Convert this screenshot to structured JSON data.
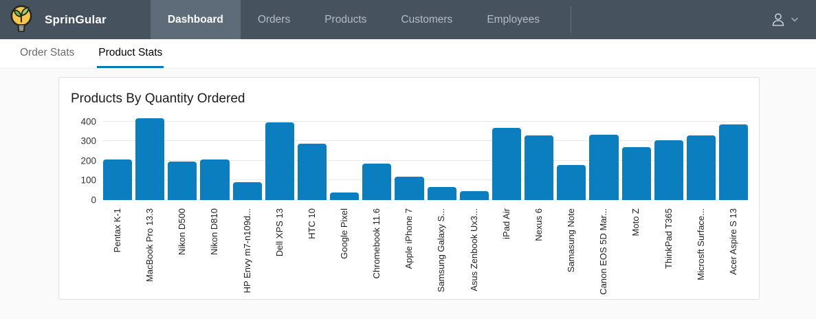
{
  "brand": {
    "name": "SprinGular"
  },
  "navbar": {
    "items": [
      {
        "label": "Dashboard",
        "active": true
      },
      {
        "label": "Orders",
        "active": false
      },
      {
        "label": "Products",
        "active": false
      },
      {
        "label": "Customers",
        "active": false
      },
      {
        "label": "Employees",
        "active": false
      }
    ]
  },
  "tabs": [
    {
      "label": "Order Stats",
      "active": false
    },
    {
      "label": "Product Stats",
      "active": true
    }
  ],
  "card": {
    "title": "Products By Quantity Ordered"
  },
  "icons": {
    "logo": "lightbulb-leaf-logo",
    "user": "user-icon",
    "caret": "chevron-down-icon"
  },
  "colors": {
    "navbar_bg": "#46535f",
    "navbar_active_bg": "#5e6b78",
    "tab_underline": "#0079b8",
    "bar": "#0b7ec0",
    "logo_yellow": "#f7c64a",
    "logo_green": "#6dbe4b"
  },
  "chart_data": {
    "type": "bar",
    "title": "Products By Quantity Ordered",
    "categories": [
      "Pentax K-1",
      "MacBook Pro 13.3",
      "Nikon D500",
      "Nikon D810",
      "HP Envy m7-n109d...",
      "Dell XPS 13",
      "HTC 10",
      "Google Pixel",
      "Chromebook 11.6",
      "Apple iPhone 7",
      "Samsung Galaxy S...",
      "Asus Zenbook Ux3...",
      "iPad Air",
      "Nexus 6",
      "Samasung Note",
      "Canon EOS 5D Mar...",
      "Moto Z",
      "ThinkPad T365",
      "Microsft Surface...",
      "Acer Aspire S 13"
    ],
    "values": [
      205,
      415,
      197,
      205,
      90,
      395,
      288,
      40,
      185,
      118,
      65,
      45,
      368,
      328,
      180,
      333,
      268,
      305,
      330,
      385
    ],
    "xlabel": "",
    "ylabel": "",
    "ylim": [
      0,
      420
    ],
    "yticks": [
      0,
      100,
      200,
      300,
      400
    ],
    "grid": true,
    "legend": false,
    "bar_color": "#0b7ec0"
  }
}
